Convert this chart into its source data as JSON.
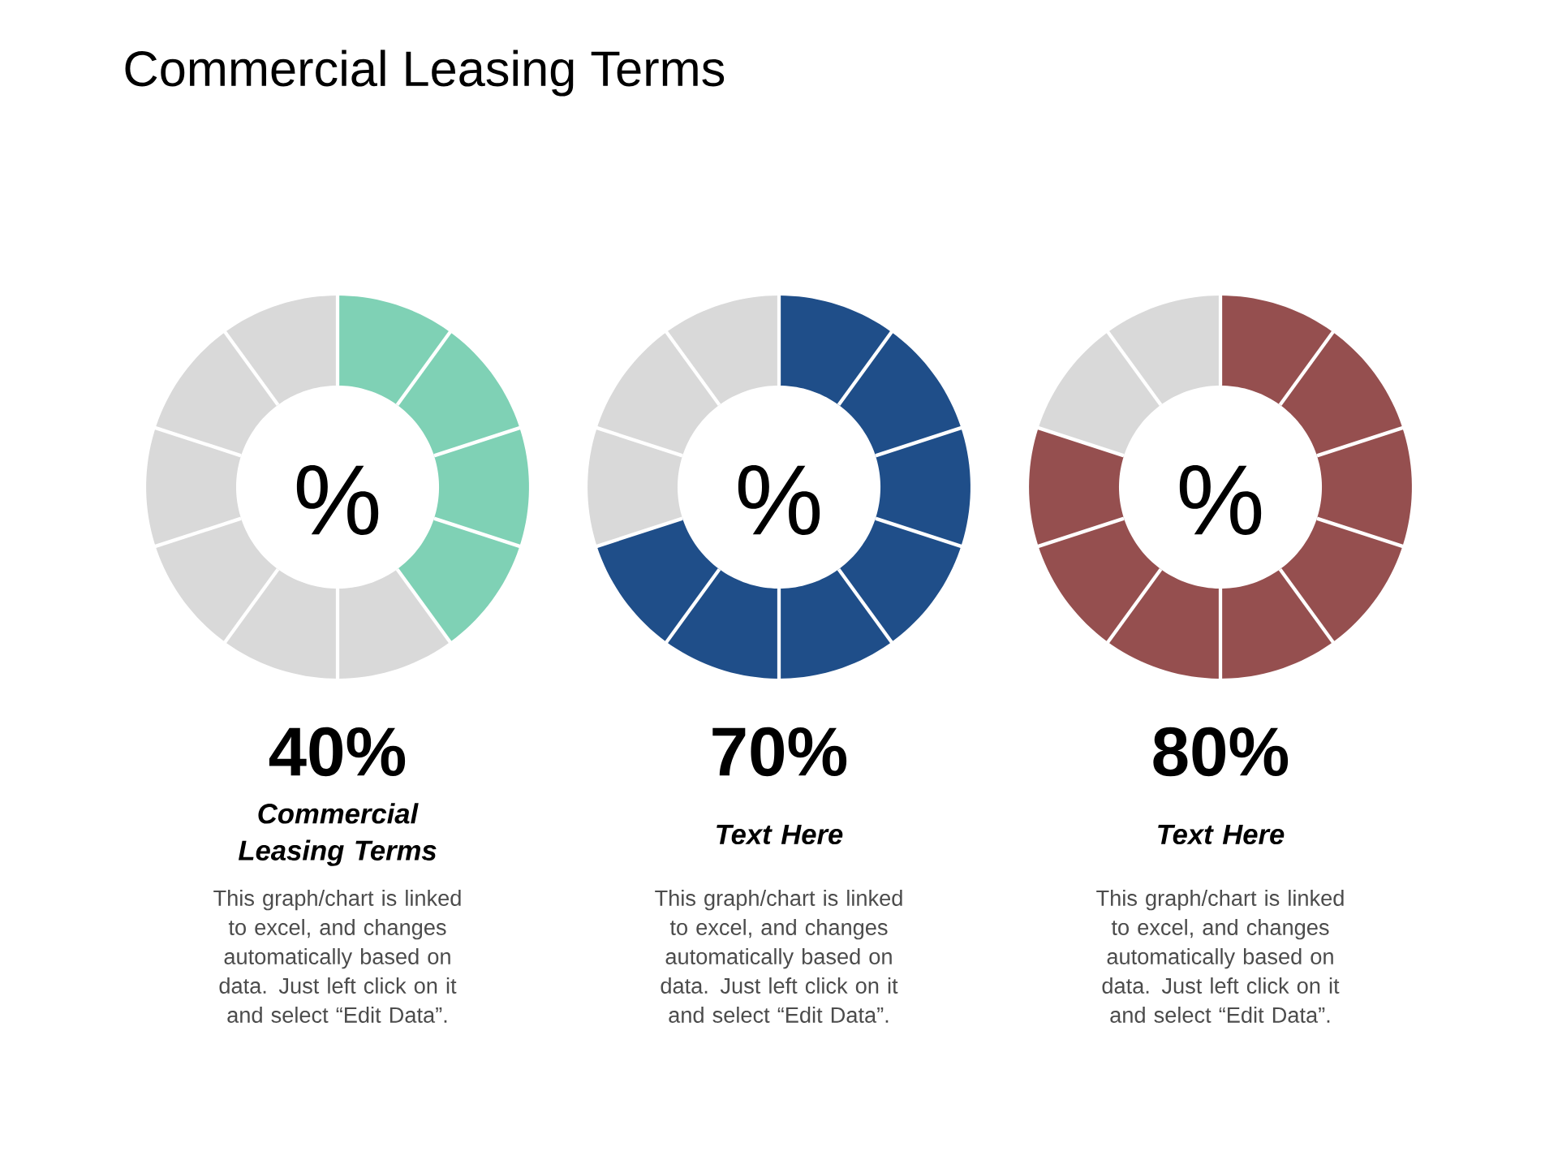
{
  "chart_data": [
    {
      "type": "donut",
      "title": "Commercial Leasing Terms",
      "subtitle": "Commercial Leasing Terms",
      "categories": [
        null,
        null
      ],
      "values": [
        40,
        60
      ],
      "colors": [
        "#7fd1b5",
        "#d9d9d9"
      ],
      "annotations": [
        "%",
        "40%",
        "This graph/chart is linked to excel, and changes automatically based on data. Just left click on it and select “Edit Data”."
      ]
    },
    {
      "type": "donut",
      "subtitle": "Text Here",
      "categories": [
        null,
        null
      ],
      "values": [
        70,
        30
      ],
      "colors": [
        "#1f4e89",
        "#d9d9d9"
      ],
      "annotations": [
        "%",
        "70%",
        "This graph/chart is linked to excel, and changes automatically based on data. Just left click on it and select “Edit Data”."
      ]
    },
    {
      "type": "donut",
      "subtitle": "Text Here",
      "categories": [
        null,
        null
      ],
      "values": [
        80,
        20
      ],
      "colors": [
        "#954f4f",
        "#d9d9d9"
      ],
      "annotations": [
        "%",
        "80%",
        "This graph/chart is linked to excel, and changes automatically based on data. Just left click on it and select “Edit Data”."
      ]
    }
  ]
}
